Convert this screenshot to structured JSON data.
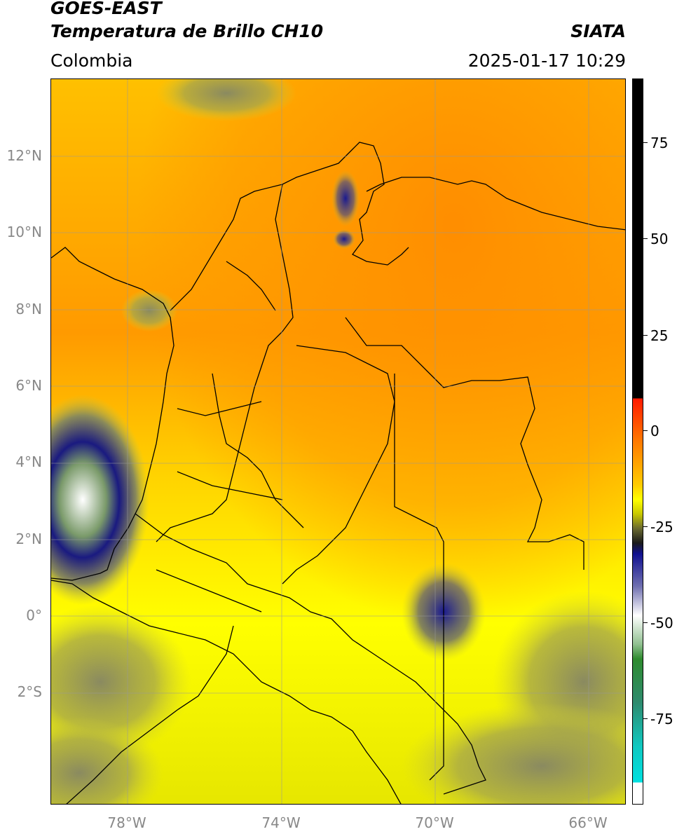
{
  "header": {
    "title_line1": "GOES-EAST",
    "title_line2": "Temperatura de Brillo CH10",
    "brand": "SIATA",
    "region": "Colombia",
    "datetime": "2025-01-17 10:29"
  },
  "map": {
    "lat_labels": [
      "12°N",
      "10°N",
      "8°N",
      "6°N",
      "4°N",
      "2°N",
      "0°",
      "2°S"
    ],
    "lon_labels": [
      "78°W",
      "74°W",
      "70°W",
      "66°W"
    ],
    "lat_values": [
      12,
      10,
      8,
      6,
      4,
      2,
      0,
      -2
    ],
    "lon_values": [
      -78,
      -74,
      -70,
      -66
    ],
    "extent": {
      "lon_min": -80,
      "lon_max": -65,
      "lat_min": -4.9,
      "lat_max": 14
    }
  },
  "colorbar": {
    "labels": [
      "75",
      "50",
      "25",
      "0",
      "-25",
      "-50",
      "-75"
    ],
    "values": [
      75,
      50,
      25,
      0,
      -25,
      -50,
      -75
    ],
    "range": [
      -95,
      90
    ],
    "colors": {
      "warm_black": "#000000",
      "red": "#ff2a00",
      "orange": "#ff8c00",
      "yellow": "#ffff00",
      "olive": "#8a8a3a",
      "navy": "#101080",
      "white": "#ffffff",
      "green": "#2e8b2e",
      "cyan": "#00d8d8"
    }
  }
}
